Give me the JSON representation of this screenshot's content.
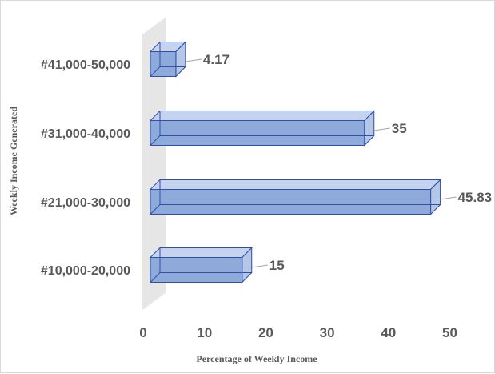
{
  "chart_data": {
    "type": "bar",
    "orientation": "horizontal",
    "style": "3d-clustered",
    "categories": [
      "#10,000-20,000",
      "#21,000-30,000",
      "#31,000-40,000",
      "#41,000-50,000"
    ],
    "values": [
      15,
      45.83,
      35,
      4.17
    ],
    "data_labels": [
      "15",
      "45.83",
      "35",
      "4.17"
    ],
    "xlabel": "Percentage of Weekly Income",
    "ylabel": "Weekly Income Generated",
    "xlim": [
      0,
      50
    ],
    "xticks": [
      "0",
      "10",
      "20",
      "30",
      "40",
      "50"
    ],
    "grid": false,
    "legend": "none",
    "colors": {
      "bar_fill": "#8eaadb",
      "bar_top": "#c5d3ee",
      "bar_side": "#b4c7e7",
      "bar_edge": "#2f4fa8",
      "wall": "#e6e6e6",
      "text": "#595959",
      "leader": "#a6a6a6"
    }
  }
}
